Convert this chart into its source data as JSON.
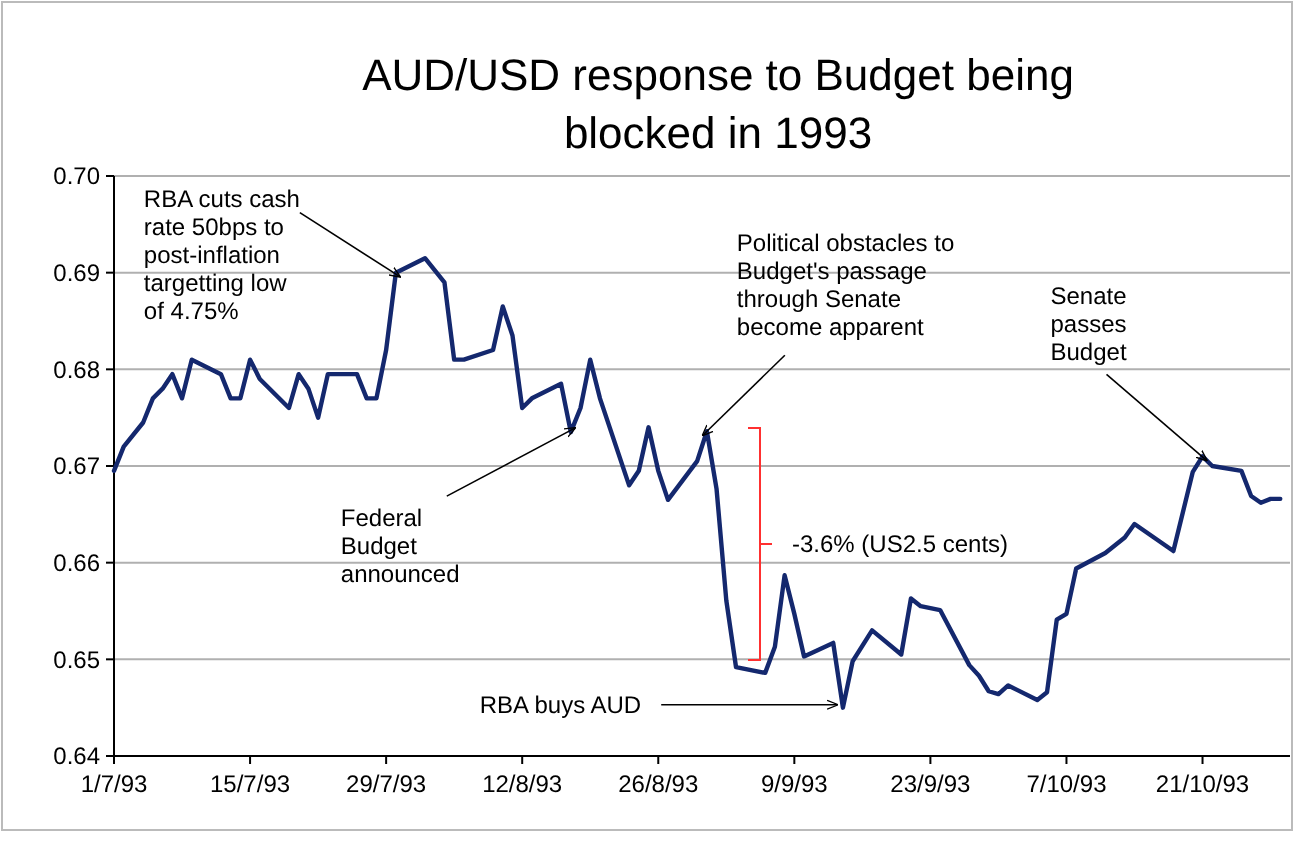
{
  "chart_data": {
    "type": "line",
    "title": "AUD/USD response to Budget being blocked in 1993",
    "x": [
      "1993-07-01",
      "1993-07-02",
      "1993-07-04",
      "1993-07-05",
      "1993-07-06",
      "1993-07-07",
      "1993-07-08",
      "1993-07-09",
      "1993-07-12",
      "1993-07-13",
      "1993-07-14",
      "1993-07-15",
      "1993-07-16",
      "1993-07-19",
      "1993-07-20",
      "1993-07-21",
      "1993-07-22",
      "1993-07-23",
      "1993-07-26",
      "1993-07-27",
      "1993-07-28",
      "1993-07-29",
      "1993-07-30",
      "1993-08-02",
      "1993-08-04",
      "1993-08-05",
      "1993-08-06",
      "1993-08-09",
      "1993-08-10",
      "1993-08-11",
      "1993-08-12",
      "1993-08-13",
      "1993-08-16",
      "1993-08-17",
      "1993-08-18",
      "1993-08-19",
      "1993-08-20",
      "1993-08-23",
      "1993-08-24",
      "1993-08-25",
      "1993-08-26",
      "1993-08-27",
      "1993-08-30",
      "1993-08-31",
      "1993-09-01",
      "1993-09-02",
      "1993-09-03",
      "1993-09-06",
      "1993-09-07",
      "1993-09-08",
      "1993-09-09",
      "1993-09-10",
      "1993-09-13",
      "1993-09-14",
      "1993-09-15",
      "1993-09-17",
      "1993-09-20",
      "1993-09-21",
      "1993-09-22",
      "1993-09-24",
      "1993-09-27",
      "1993-09-28",
      "1993-09-29",
      "1993-09-30",
      "1993-10-01",
      "1993-10-04",
      "1993-10-05",
      "1993-10-06",
      "1993-10-07",
      "1993-10-08",
      "1993-10-11",
      "1993-10-13",
      "1993-10-14",
      "1993-10-18",
      "1993-10-20",
      "1993-10-21",
      "1993-10-22",
      "1993-10-25",
      "1993-10-26",
      "1993-10-27",
      "1993-10-28",
      "1993-10-29"
    ],
    "series": [
      {
        "color": "#14286e",
        "values": [
          0.6695,
          0.672,
          0.6745,
          0.677,
          0.678,
          0.6795,
          0.677,
          0.681,
          0.6795,
          0.677,
          0.677,
          0.681,
          0.679,
          0.676,
          0.6795,
          0.678,
          0.675,
          0.6795,
          0.6795,
          0.677,
          0.677,
          0.682,
          0.69,
          0.6915,
          0.689,
          0.681,
          0.681,
          0.682,
          0.6865,
          0.6835,
          0.676,
          0.677,
          0.6785,
          0.6735,
          0.676,
          0.681,
          0.677,
          0.668,
          0.6695,
          0.674,
          0.6695,
          0.6665,
          0.6705,
          0.6736,
          0.6676,
          0.6561,
          0.6492,
          0.6486,
          0.6513,
          0.6587,
          0.6547,
          0.6503,
          0.6517,
          0.645,
          0.6498,
          0.653,
          0.6505,
          0.6563,
          0.6555,
          0.6551,
          0.6494,
          0.6483,
          0.6467,
          0.6464,
          0.6473,
          0.6458,
          0.6466,
          0.6541,
          0.6547,
          0.6594,
          0.661,
          0.6626,
          0.664,
          0.6612,
          0.6694,
          0.671,
          0.67,
          0.6695,
          0.6669,
          0.6662,
          0.6666,
          0.6666
        ]
      }
    ],
    "xlim": [
      "1993-07-01",
      "1993-10-30"
    ],
    "xticks": [
      {
        "value": "1993-07-01",
        "label": "1/7/93"
      },
      {
        "value": "1993-07-15",
        "label": "15/7/93"
      },
      {
        "value": "1993-07-29",
        "label": "29/7/93"
      },
      {
        "value": "1993-08-12",
        "label": "12/8/93"
      },
      {
        "value": "1993-08-26",
        "label": "26/8/93"
      },
      {
        "value": "1993-09-09",
        "label": "9/9/93"
      },
      {
        "value": "1993-09-23",
        "label": "23/9/93"
      },
      {
        "value": "1993-10-07",
        "label": "7/10/93"
      },
      {
        "value": "1993-10-21",
        "label": "21/10/93"
      }
    ],
    "ylim": [
      0.64,
      0.7
    ],
    "yticks": [
      0.64,
      0.65,
      0.66,
      0.67,
      0.68,
      0.69,
      {
        "value": 0.7,
        "label": "0.70"
      }
    ],
    "grid": "y",
    "annotations": [
      {
        "text": "RBA cuts cash rate 50bps to post-inflation targetting low of 4.75%",
        "x": "1993-07-30",
        "y": 0.69
      },
      {
        "text": "Federal Budget announced",
        "x": "1993-08-17",
        "y": 0.6735
      },
      {
        "text": "Political obstacles to Budget's passage through Senate become apparent",
        "x": "1993-08-31",
        "y": 0.6736
      },
      {
        "text": "Senate passes Budget",
        "x": "1993-10-21",
        "y": 0.671
      },
      {
        "text": "RBA buys AUD",
        "x": "1993-09-13",
        "y": 0.6453
      },
      "-3.6% (US2.5 cents)"
    ]
  }
}
